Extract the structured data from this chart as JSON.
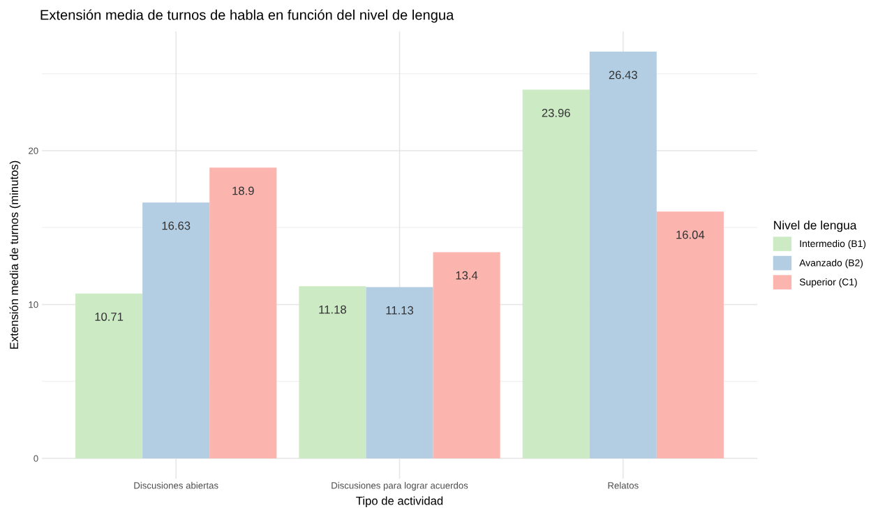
{
  "chart_data": {
    "type": "bar",
    "title": "Extensión media de turnos de habla en función del nivel de lengua",
    "xlabel": "Tipo de actividad",
    "ylabel": "Extensión media de turnos (minutos)",
    "legend_title": "Nivel de lengua",
    "categories": [
      "Discusiones abiertas",
      "Discusiones para lograr acuerdos",
      "Relatos"
    ],
    "series": [
      {
        "name": "Intermedio (B1)",
        "color": "#ccebc5",
        "values": [
          10.71,
          11.18,
          23.96
        ]
      },
      {
        "name": "Avanzado (B2)",
        "color": "#b3cde3",
        "values": [
          16.63,
          11.13,
          26.43
        ]
      },
      {
        "name": "Superior (C1)",
        "color": "#fbb4ae",
        "values": [
          18.9,
          13.4,
          16.04
        ]
      }
    ],
    "ylim": [
      -1.32,
      27.75
    ],
    "yticks": [
      0,
      {
        "value": 5,
        "label": null
      },
      10,
      {
        "value": 15,
        "label": null
      },
      20,
      {
        "value": 25,
        "label": null
      }
    ],
    "grid": true,
    "legend": "right",
    "data_labels": true
  }
}
